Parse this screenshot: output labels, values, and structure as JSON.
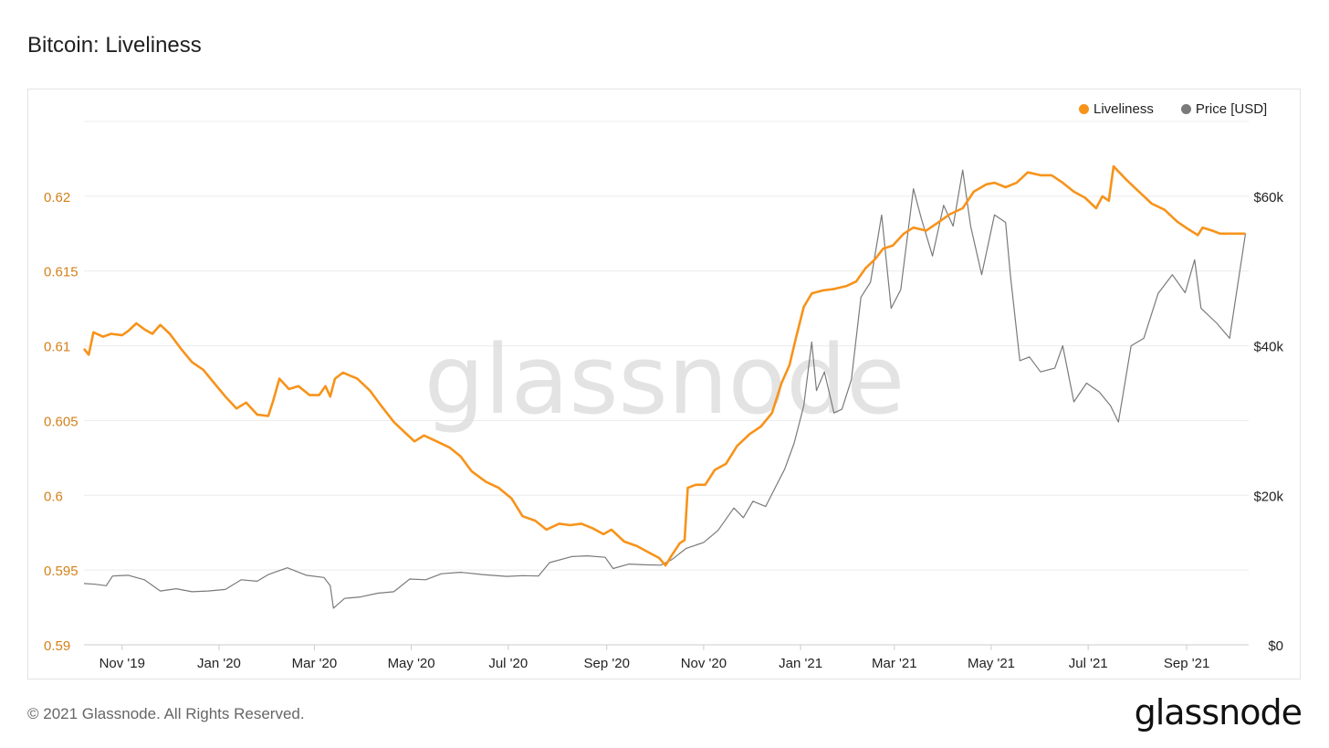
{
  "title": "Bitcoin: Liveliness",
  "footer": "© 2021 Glassnode. All Rights Reserved.",
  "brand": "glassnode",
  "watermark": "glassnode",
  "legend": [
    {
      "label": "Liveliness",
      "color": "#F7931A"
    },
    {
      "label": "Price [USD]",
      "color": "#7a7a7a"
    }
  ],
  "chart_data": {
    "type": "line",
    "x_ticks": [
      "Nov '19",
      "Jan '20",
      "Mar '20",
      "May '20",
      "Jul '20",
      "Sep '20",
      "Nov '20",
      "Jan '21",
      "Mar '21",
      "May '21",
      "Jul '21",
      "Sep '21"
    ],
    "y_left_ticks": [
      "0.59",
      "0.595",
      "0.6",
      "0.605",
      "0.61",
      "0.615",
      "0.62"
    ],
    "y_right_ticks": [
      "$0",
      "$20k",
      "$40k",
      "$60k"
    ],
    "y_left_range": [
      0.59,
      0.625
    ],
    "y_right_range": [
      0,
      70000
    ],
    "x_range": [
      "2019-10-08",
      "2021-10-10"
    ],
    "grid": true,
    "legend_position": "top-right",
    "series": [
      {
        "name": "Liveliness",
        "axis": "left",
        "color": "#F7931A",
        "points": [
          [
            "2019-10-08",
            0.6098
          ],
          [
            "2019-10-11",
            0.6094
          ],
          [
            "2019-10-14",
            0.6109
          ],
          [
            "2019-10-20",
            0.6106
          ],
          [
            "2019-10-25",
            0.6108
          ],
          [
            "2019-11-01",
            0.6107
          ],
          [
            "2019-11-05",
            0.611
          ],
          [
            "2019-11-10",
            0.6115
          ],
          [
            "2019-11-15",
            0.6111
          ],
          [
            "2019-11-20",
            0.6108
          ],
          [
            "2019-11-25",
            0.6114
          ],
          [
            "2019-12-01",
            0.6108
          ],
          [
            "2019-12-08",
            0.6098
          ],
          [
            "2019-12-15",
            0.6089
          ],
          [
            "2019-12-22",
            0.6084
          ],
          [
            "2019-12-29",
            0.6075
          ],
          [
            "2020-01-05",
            0.6066
          ],
          [
            "2020-01-12",
            0.6058
          ],
          [
            "2020-01-18",
            0.6062
          ],
          [
            "2020-01-25",
            0.6054
          ],
          [
            "2020-02-01",
            0.6053
          ],
          [
            "2020-02-04",
            0.6063
          ],
          [
            "2020-02-08",
            0.6078
          ],
          [
            "2020-02-14",
            0.6071
          ],
          [
            "2020-02-20",
            0.6073
          ],
          [
            "2020-02-27",
            0.6067
          ],
          [
            "2020-03-04",
            0.6067
          ],
          [
            "2020-03-08",
            0.6073
          ],
          [
            "2020-03-11",
            0.6066
          ],
          [
            "2020-03-14",
            0.6078
          ],
          [
            "2020-03-19",
            0.6082
          ],
          [
            "2020-03-28",
            0.6078
          ],
          [
            "2020-04-05",
            0.607
          ],
          [
            "2020-04-12",
            0.606
          ],
          [
            "2020-04-20",
            0.6049
          ],
          [
            "2020-04-27",
            0.6042
          ],
          [
            "2020-05-03",
            0.6036
          ],
          [
            "2020-05-09",
            0.604
          ],
          [
            "2020-05-17",
            0.6036
          ],
          [
            "2020-05-25",
            0.6032
          ],
          [
            "2020-06-01",
            0.6026
          ],
          [
            "2020-06-08",
            0.6016
          ],
          [
            "2020-06-17",
            0.6009
          ],
          [
            "2020-06-25",
            0.6005
          ],
          [
            "2020-07-03",
            0.5998
          ],
          [
            "2020-07-10",
            0.5986
          ],
          [
            "2020-07-18",
            0.5983
          ],
          [
            "2020-07-25",
            0.5977
          ],
          [
            "2020-08-02",
            0.5981
          ],
          [
            "2020-08-09",
            0.598
          ],
          [
            "2020-08-16",
            0.5981
          ],
          [
            "2020-08-23",
            0.5978
          ],
          [
            "2020-08-30",
            0.5974
          ],
          [
            "2020-09-04",
            0.5977
          ],
          [
            "2020-09-12",
            0.5969
          ],
          [
            "2020-09-20",
            0.5966
          ],
          [
            "2020-09-27",
            0.5962
          ],
          [
            "2020-10-04",
            0.5958
          ],
          [
            "2020-10-08",
            0.5953
          ],
          [
            "2020-10-12",
            0.596
          ],
          [
            "2020-10-17",
            0.5968
          ],
          [
            "2020-10-20",
            0.597
          ],
          [
            "2020-10-22",
            0.6005
          ],
          [
            "2020-10-27",
            0.6007
          ],
          [
            "2020-11-02",
            0.6007
          ],
          [
            "2020-11-08",
            0.6017
          ],
          [
            "2020-11-15",
            0.6021
          ],
          [
            "2020-11-22",
            0.6033
          ],
          [
            "2020-11-30",
            0.6041
          ],
          [
            "2020-12-07",
            0.6046
          ],
          [
            "2020-12-14",
            0.6055
          ],
          [
            "2020-12-20",
            0.6075
          ],
          [
            "2020-12-25",
            0.6087
          ],
          [
            "2020-12-29",
            0.6105
          ],
          [
            "2021-01-03",
            0.6126
          ],
          [
            "2021-01-08",
            0.6135
          ],
          [
            "2021-01-15",
            0.6137
          ],
          [
            "2021-01-22",
            0.6138
          ],
          [
            "2021-01-30",
            0.614
          ],
          [
            "2021-02-05",
            0.6143
          ],
          [
            "2021-02-11",
            0.6152
          ],
          [
            "2021-02-17",
            0.6158
          ],
          [
            "2021-02-22",
            0.6165
          ],
          [
            "2021-02-28",
            0.6167
          ],
          [
            "2021-03-07",
            0.6175
          ],
          [
            "2021-03-13",
            0.6179
          ],
          [
            "2021-03-21",
            0.6177
          ],
          [
            "2021-03-28",
            0.6182
          ],
          [
            "2021-04-05",
            0.6188
          ],
          [
            "2021-04-13",
            0.6192
          ],
          [
            "2021-04-20",
            0.6203
          ],
          [
            "2021-04-28",
            0.6208
          ],
          [
            "2021-05-03",
            0.6209
          ],
          [
            "2021-05-10",
            0.6206
          ],
          [
            "2021-05-17",
            0.6209
          ],
          [
            "2021-05-24",
            0.6216
          ],
          [
            "2021-06-01",
            0.6214
          ],
          [
            "2021-06-08",
            0.6214
          ],
          [
            "2021-06-15",
            0.6209
          ],
          [
            "2021-06-22",
            0.6203
          ],
          [
            "2021-06-29",
            0.6199
          ],
          [
            "2021-07-06",
            0.6192
          ],
          [
            "2021-07-10",
            0.62
          ],
          [
            "2021-07-14",
            0.6197
          ],
          [
            "2021-07-17",
            0.622
          ],
          [
            "2021-07-25",
            0.6211
          ],
          [
            "2021-08-02",
            0.6203
          ],
          [
            "2021-08-10",
            0.6195
          ],
          [
            "2021-08-18",
            0.6191
          ],
          [
            "2021-08-26",
            0.6183
          ],
          [
            "2021-09-02",
            0.6178
          ],
          [
            "2021-09-08",
            0.6174
          ],
          [
            "2021-09-11",
            0.6179
          ],
          [
            "2021-09-17",
            0.6177
          ],
          [
            "2021-09-22",
            0.6175
          ],
          [
            "2021-10-08",
            0.6175
          ]
        ]
      },
      {
        "name": "Price [USD]",
        "axis": "right",
        "color": "#7a7a7a",
        "points": [
          [
            "2019-10-08",
            8200
          ],
          [
            "2019-10-15",
            8100
          ],
          [
            "2019-10-22",
            7900
          ],
          [
            "2019-10-26",
            9200
          ],
          [
            "2019-11-05",
            9300
          ],
          [
            "2019-11-15",
            8700
          ],
          [
            "2019-11-25",
            7200
          ],
          [
            "2019-12-05",
            7500
          ],
          [
            "2019-12-15",
            7100
          ],
          [
            "2019-12-25",
            7200
          ],
          [
            "2020-01-05",
            7400
          ],
          [
            "2020-01-15",
            8700
          ],
          [
            "2020-01-25",
            8500
          ],
          [
            "2020-02-01",
            9400
          ],
          [
            "2020-02-13",
            10300
          ],
          [
            "2020-02-25",
            9300
          ],
          [
            "2020-03-07",
            9000
          ],
          [
            "2020-03-11",
            7900
          ],
          [
            "2020-03-13",
            4900
          ],
          [
            "2020-03-20",
            6200
          ],
          [
            "2020-03-30",
            6400
          ],
          [
            "2020-04-10",
            6900
          ],
          [
            "2020-04-20",
            7100
          ],
          [
            "2020-04-30",
            8800
          ],
          [
            "2020-05-10",
            8700
          ],
          [
            "2020-05-20",
            9500
          ],
          [
            "2020-06-01",
            9700
          ],
          [
            "2020-06-15",
            9400
          ],
          [
            "2020-06-30",
            9150
          ],
          [
            "2020-07-10",
            9250
          ],
          [
            "2020-07-20",
            9200
          ],
          [
            "2020-07-27",
            11000
          ],
          [
            "2020-08-10",
            11800
          ],
          [
            "2020-08-20",
            11900
          ],
          [
            "2020-08-31",
            11700
          ],
          [
            "2020-09-05",
            10200
          ],
          [
            "2020-09-15",
            10800
          ],
          [
            "2020-09-25",
            10700
          ],
          [
            "2020-10-05",
            10650
          ],
          [
            "2020-10-12",
            11400
          ],
          [
            "2020-10-21",
            12900
          ],
          [
            "2020-11-01",
            13700
          ],
          [
            "2020-11-10",
            15300
          ],
          [
            "2020-11-20",
            18300
          ],
          [
            "2020-11-26",
            17000
          ],
          [
            "2020-12-02",
            19200
          ],
          [
            "2020-12-10",
            18500
          ],
          [
            "2020-12-16",
            21000
          ],
          [
            "2020-12-22",
            23500
          ],
          [
            "2020-12-28",
            27000
          ],
          [
            "2021-01-03",
            32000
          ],
          [
            "2021-01-08",
            40500
          ],
          [
            "2021-01-11",
            34000
          ],
          [
            "2021-01-16",
            36500
          ],
          [
            "2021-01-22",
            31000
          ],
          [
            "2021-01-27",
            31500
          ],
          [
            "2021-02-02",
            35500
          ],
          [
            "2021-02-08",
            46500
          ],
          [
            "2021-02-14",
            48500
          ],
          [
            "2021-02-21",
            57500
          ],
          [
            "2021-02-27",
            45000
          ],
          [
            "2021-03-05",
            47500
          ],
          [
            "2021-03-13",
            61000
          ],
          [
            "2021-03-18",
            57000
          ],
          [
            "2021-03-25",
            52000
          ],
          [
            "2021-04-01",
            58800
          ],
          [
            "2021-04-07",
            56000
          ],
          [
            "2021-04-13",
            63500
          ],
          [
            "2021-04-18",
            56000
          ],
          [
            "2021-04-25",
            49500
          ],
          [
            "2021-05-03",
            57500
          ],
          [
            "2021-05-10",
            56500
          ],
          [
            "2021-05-13",
            49500
          ],
          [
            "2021-05-19",
            38000
          ],
          [
            "2021-05-25",
            38500
          ],
          [
            "2021-06-01",
            36500
          ],
          [
            "2021-06-10",
            37000
          ],
          [
            "2021-06-15",
            40000
          ],
          [
            "2021-06-22",
            32500
          ],
          [
            "2021-06-30",
            35000
          ],
          [
            "2021-07-08",
            33800
          ],
          [
            "2021-07-15",
            32000
          ],
          [
            "2021-07-20",
            29800
          ],
          [
            "2021-07-28",
            40000
          ],
          [
            "2021-08-05",
            41000
          ],
          [
            "2021-08-14",
            47000
          ],
          [
            "2021-08-23",
            49500
          ],
          [
            "2021-08-31",
            47100
          ],
          [
            "2021-09-06",
            51500
          ],
          [
            "2021-09-10",
            45000
          ],
          [
            "2021-09-20",
            43000
          ],
          [
            "2021-09-28",
            41000
          ],
          [
            "2021-10-03",
            48000
          ],
          [
            "2021-10-08",
            55000
          ]
        ]
      }
    ]
  }
}
